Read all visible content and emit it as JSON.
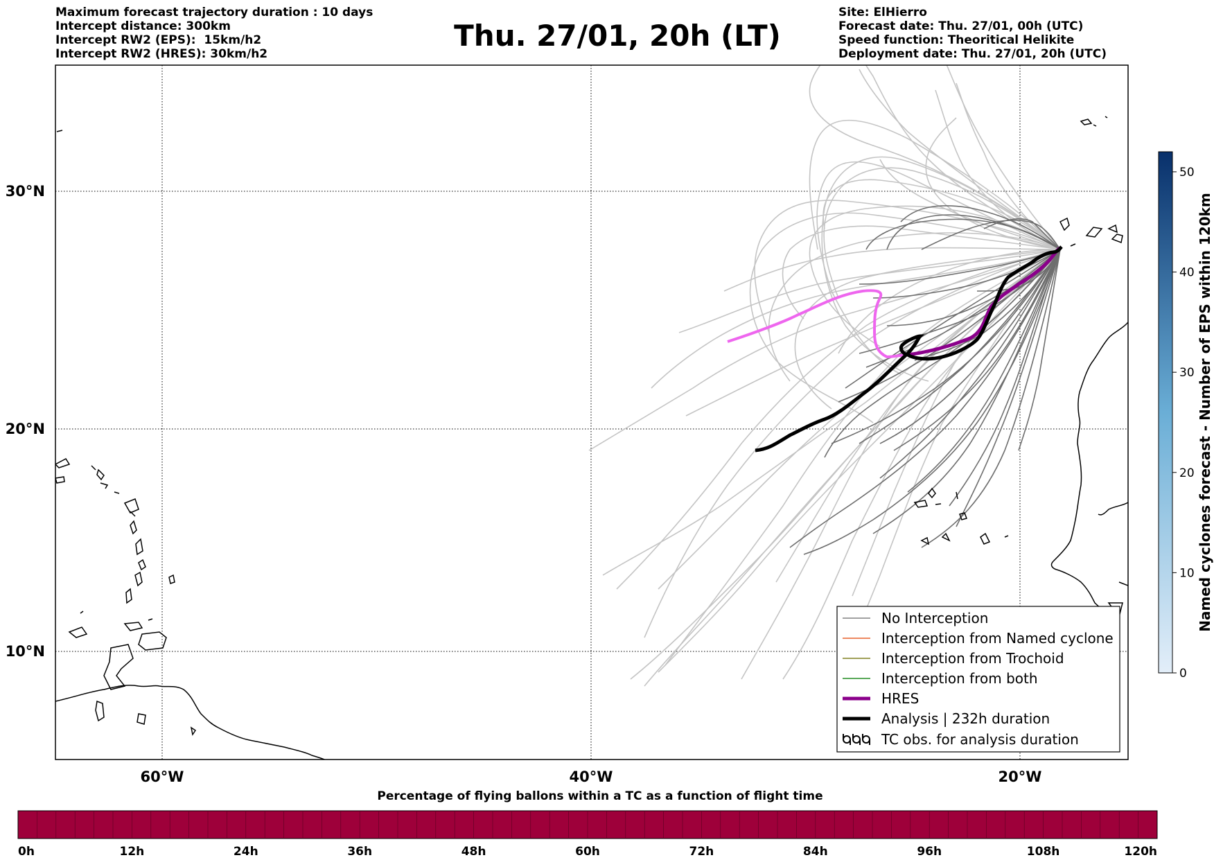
{
  "header": {
    "left_lines": [
      "Maximum forecast trajectory duration : 10 days",
      "Intercept distance: 300km",
      "Intercept RW2 (EPS):  15km/h2",
      "Intercept RW2 (HRES): 30km/h2"
    ],
    "title": "Thu. 27/01, 20h (LT)",
    "right_lines": [
      "Site: ElHierro",
      "Forecast date: Thu. 27/01, 00h (UTC)",
      "Speed function: Theoritical Helikite",
      "Deployment date: Thu. 27/01, 20h (UTC)"
    ]
  },
  "map": {
    "lat_labels": [
      "30°N",
      "20°N",
      "10°N"
    ],
    "lon_labels": [
      "60°W",
      "40°W",
      "20°W"
    ],
    "colors": {
      "eps_light": "#c4c4c4",
      "eps_dark": "#6e6e6e",
      "hres": "#8b008b",
      "hres_extension": "#ee66ee",
      "analysis": "#000000",
      "coast": "#000000"
    }
  },
  "legend": {
    "items": [
      {
        "label": "No Interception",
        "color": "#808080",
        "style": "thin"
      },
      {
        "label": "Interception from Named cyclone",
        "color": "#e8602c",
        "style": "thin"
      },
      {
        "label": "Interception from Trochoid",
        "color": "#808020",
        "style": "thin"
      },
      {
        "label": "Interception from both",
        "color": "#228b22",
        "style": "thin"
      },
      {
        "label": "HRES",
        "color": "#8b008b",
        "style": "thick"
      },
      {
        "label": "Analysis | 232h duration",
        "color": "#000000",
        "style": "thick"
      },
      {
        "label": "TC obs. for analysis duration",
        "color": "#000000",
        "style": "cyclone-symbols"
      }
    ]
  },
  "colorbar": {
    "title": "Named cyclones forecast - Number of EPS within 120km",
    "ticks": [
      "0",
      "10",
      "20",
      "30",
      "40",
      "50"
    ],
    "min": 0,
    "max": 52,
    "color_low": "#e3eef9",
    "color_high": "#08306b"
  },
  "bottom_bar": {
    "title": "Percentage of flying ballons within a TC as a function of flight time",
    "ticks": [
      "0h",
      "12h",
      "24h",
      "36h",
      "48h",
      "60h",
      "72h",
      "84h",
      "96h",
      "108h",
      "120h"
    ],
    "fill_color": "#9e003a",
    "segments": 60
  }
}
